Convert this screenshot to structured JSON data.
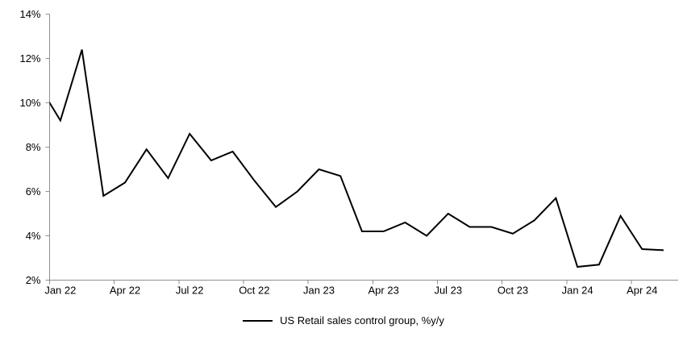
{
  "chart_data": {
    "type": "line",
    "title": "",
    "grid": "none",
    "legend": {
      "position": "bottom-center"
    },
    "series": [
      {
        "name": "US Retail sales control group, %y/y",
        "color": "#000000",
        "x": [
          "Dec 21",
          "Jan 22",
          "Feb 22",
          "Mar 22",
          "Apr 22",
          "May 22",
          "Jun 22",
          "Jul 22",
          "Aug 22",
          "Sep 22",
          "Oct 22",
          "Nov 22",
          "Dec 22",
          "Jan 23",
          "Feb 23",
          "Mar 23",
          "Apr 23",
          "May 23",
          "Jun 23",
          "Jul 23",
          "Aug 23",
          "Sep 23",
          "Oct 23",
          "Nov 23",
          "Dec 23",
          "Jan 24",
          "Feb 24",
          "Mar 24",
          "Apr 24",
          "May 24"
        ],
        "values": [
          10.8,
          9.2,
          12.4,
          5.8,
          6.4,
          7.9,
          6.6,
          8.6,
          7.4,
          7.8,
          6.5,
          5.3,
          6.0,
          7.0,
          6.7,
          4.2,
          4.2,
          4.6,
          4.0,
          5.0,
          4.4,
          4.4,
          4.1,
          4.7,
          5.7,
          2.6,
          2.7,
          4.9,
          3.4,
          3.35
        ],
        "note": "First point (Dec 21) lies left of the y-axis; its segment is clipped so the line enters the plot at ~10.0% on the axis"
      }
    ],
    "x_axis": {
      "tick_labels": [
        "Jan 22",
        "Apr 22",
        "Jul 22",
        "Oct 22",
        "Jan 23",
        "Apr 23",
        "Jul 23",
        "Oct 23",
        "Jan 24",
        "Apr 24"
      ],
      "tick_interval_months": 3,
      "labels_centered_on_points": true
    },
    "y_axis": {
      "min": 2,
      "max": 14,
      "tick_step": 2,
      "tick_labels": [
        "14%",
        "12%",
        "10%",
        "8%",
        "6%",
        "4%",
        "2%"
      ],
      "format": "percent"
    },
    "colors": {
      "line": "#000000",
      "axis": "#8f8f8f",
      "text": "#000000",
      "background": "#ffffff"
    }
  }
}
